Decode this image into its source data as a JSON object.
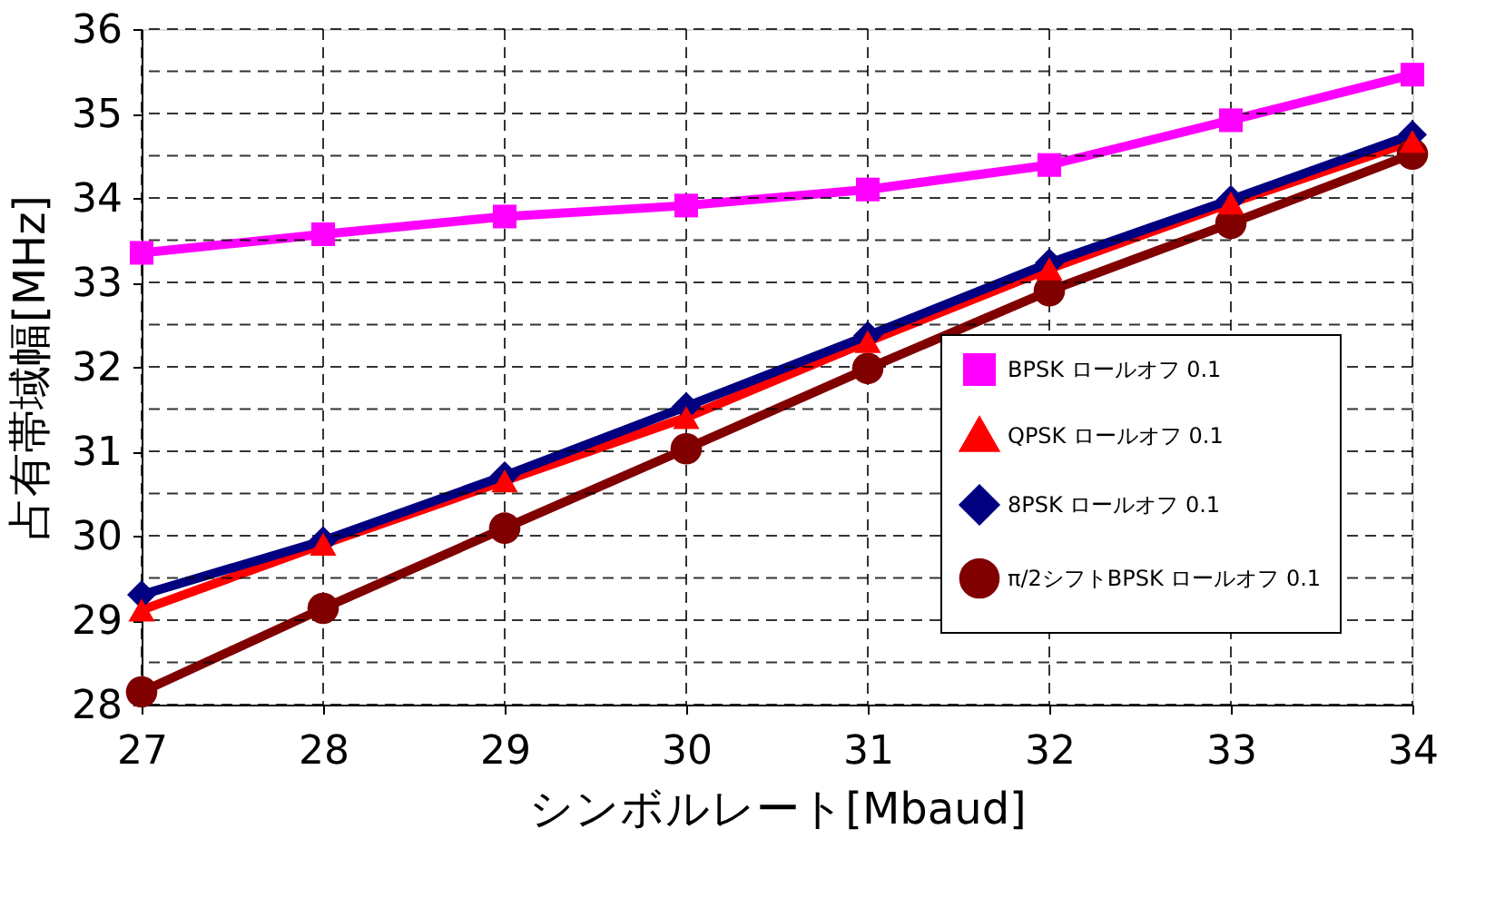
{
  "chart_data": {
    "type": "line",
    "xlabel": "シンボルレート[Mbaud]",
    "ylabel": "占有帯域幅[MHz]",
    "x": [
      27,
      28,
      29,
      30,
      31,
      32,
      33,
      34
    ],
    "xlim": [
      27,
      34
    ],
    "xticks": [
      27,
      28,
      29,
      30,
      31,
      32,
      33,
      34
    ],
    "ylim": [
      28,
      36
    ],
    "yticks": [
      28,
      {
        "value": 28.5,
        "label": null
      },
      29,
      {
        "value": 29.5,
        "label": null
      },
      30,
      {
        "value": 30.5,
        "label": null
      },
      31,
      {
        "value": 31.5,
        "label": null
      },
      32,
      {
        "value": 32.5,
        "label": null
      },
      33,
      {
        "value": 33.5,
        "label": null
      },
      34,
      {
        "value": 34.5,
        "label": null
      },
      35,
      {
        "value": 35.5,
        "label": null
      },
      36
    ],
    "grid": true,
    "legend": "bottom right",
    "line_style": "solid",
    "series": [
      {
        "name": "BPSK ロールオフ 0.1",
        "color": "#ff00ff",
        "marker": "square",
        "values": [
          33.35,
          33.57,
          33.78,
          33.91,
          34.1,
          34.39,
          34.92,
          35.46
        ]
      },
      {
        "name": "QPSK ロールオフ 0.1",
        "color": "#ff0000",
        "marker": "triangle",
        "values": [
          29.12,
          29.9,
          30.65,
          31.4,
          32.3,
          33.16,
          33.94,
          34.67
        ]
      },
      {
        "name": "8PSK ロールオフ 0.1",
        "color": "#000080",
        "marker": "diamond",
        "values": [
          29.3,
          29.94,
          30.71,
          31.53,
          32.37,
          33.23,
          33.98,
          34.75
        ]
      },
      {
        "name": "π/2シフトBPSK ロールオフ 0.1",
        "color": "#800000",
        "marker": "circle",
        "values": [
          28.15,
          29.14,
          30.09,
          31.03,
          31.98,
          32.9,
          33.7,
          34.52
        ]
      }
    ]
  }
}
